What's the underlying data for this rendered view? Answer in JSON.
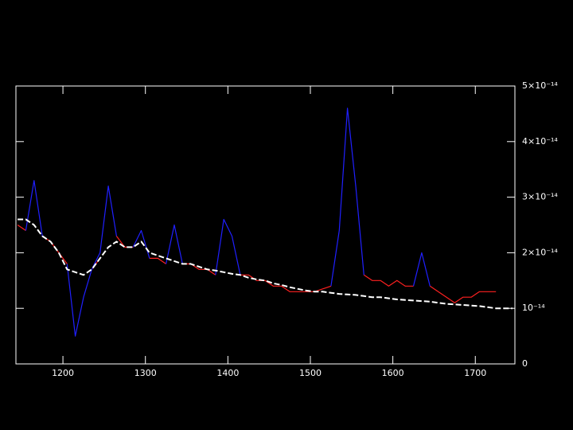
{
  "chart_data": {
    "type": "line",
    "x": [
      1145,
      1155,
      1165,
      1175,
      1185,
      1195,
      1205,
      1215,
      1225,
      1235,
      1245,
      1255,
      1265,
      1275,
      1285,
      1295,
      1305,
      1315,
      1325,
      1335,
      1345,
      1355,
      1365,
      1375,
      1385,
      1395,
      1405,
      1415,
      1425,
      1435,
      1445,
      1455,
      1465,
      1475,
      1485,
      1495,
      1505,
      1515,
      1525,
      1535,
      1545,
      1555,
      1565,
      1575,
      1585,
      1595,
      1605,
      1615,
      1625,
      1635,
      1645,
      1655,
      1665,
      1675,
      1685,
      1695,
      1705,
      1715,
      1725,
      1735,
      1745
    ],
    "series": [
      {
        "color": "#ff2020",
        "style": "solid",
        "values": [
          2.5e-14,
          2.4e-14,
          null,
          2.3e-14,
          2.2e-14,
          2e-14,
          1.8e-14,
          null,
          null,
          1.7e-14,
          1.9e-14,
          null,
          2.3e-14,
          2.1e-14,
          2.1e-14,
          null,
          1.9e-14,
          1.9e-14,
          1.8e-14,
          null,
          1.8e-14,
          1.8e-14,
          1.7e-14,
          1.7e-14,
          1.6e-14,
          null,
          null,
          1.6e-14,
          1.6e-14,
          1.5e-14,
          1.5e-14,
          1.4e-14,
          1.4e-14,
          1.3e-14,
          1.3e-14,
          1.3e-14,
          1.3e-14,
          1.35e-14,
          1.4e-14,
          null,
          null,
          null,
          1.6e-14,
          1.5e-14,
          1.5e-14,
          1.4e-14,
          1.5e-14,
          1.4e-14,
          1.4e-14,
          null,
          1.4e-14,
          1.3e-14,
          1.2e-14,
          1.1e-14,
          1.2e-14,
          1.2e-14,
          1.3e-14,
          1.3e-14,
          1.3e-14,
          null,
          null
        ]
      },
      {
        "color": "#2020ff",
        "style": "solid",
        "values": [
          null,
          2.4e-14,
          3.3e-14,
          2.3e-14,
          null,
          null,
          1.8e-14,
          5e-15,
          1.2e-14,
          1.7e-14,
          2e-14,
          3.2e-14,
          2.3e-14,
          null,
          2.1e-14,
          2.4e-14,
          1.9e-14,
          null,
          1.8e-14,
          2.5e-14,
          1.8e-14,
          null,
          null,
          null,
          1.6e-14,
          2.6e-14,
          2.3e-14,
          1.6e-14,
          null,
          null,
          null,
          null,
          null,
          null,
          null,
          null,
          null,
          null,
          1.4e-14,
          2.4e-14,
          4.6e-14,
          3.2e-14,
          1.6e-14,
          null,
          null,
          null,
          null,
          null,
          1.4e-14,
          2e-14,
          1.4e-14,
          null,
          null,
          null,
          null,
          null,
          null,
          null,
          null,
          null,
          null
        ]
      },
      {
        "color": "#ffffff",
        "style": "dashed",
        "values": [
          2.6e-14,
          2.6e-14,
          2.5e-14,
          2.3e-14,
          2.2e-14,
          2e-14,
          1.7e-14,
          1.65e-14,
          1.6e-14,
          1.7e-14,
          1.9e-14,
          2.1e-14,
          2.2e-14,
          2.1e-14,
          2.1e-14,
          2.2e-14,
          2e-14,
          1.95e-14,
          1.9e-14,
          1.85e-14,
          1.8e-14,
          1.8e-14,
          1.75e-14,
          1.7e-14,
          1.68e-14,
          1.65e-14,
          1.62e-14,
          1.6e-14,
          1.55e-14,
          1.52e-14,
          1.5e-14,
          1.45e-14,
          1.42e-14,
          1.38e-14,
          1.35e-14,
          1.32e-14,
          1.3e-14,
          1.3e-14,
          1.28e-14,
          1.26e-14,
          1.25e-14,
          1.24e-14,
          1.22e-14,
          1.2e-14,
          1.2e-14,
          1.18e-14,
          1.16e-14,
          1.15e-14,
          1.14e-14,
          1.13e-14,
          1.12e-14,
          1.1e-14,
          1.08e-14,
          1.07e-14,
          1.06e-14,
          1.05e-14,
          1.04e-14,
          1.02e-14,
          1e-14,
          1e-14,
          1e-14
        ]
      }
    ],
    "xlim": [
      1143,
      1748
    ],
    "xticks": [
      1200,
      1300,
      1400,
      1500,
      1600,
      1700
    ],
    "ylim": [
      0,
      5e-14
    ],
    "yticks": [
      0,
      {
        "value": 1e-14,
        "label": "10⁻¹⁴"
      },
      {
        "value": 2e-14,
        "label": "2×10⁻¹⁴"
      },
      {
        "value": 3e-14,
        "label": "3×10⁻¹⁴"
      },
      {
        "value": 4e-14,
        "label": "4×10⁻¹⁴"
      },
      {
        "value": 5e-14,
        "label": "5×10⁻¹⁴"
      }
    ],
    "y_axis_side": "right"
  }
}
